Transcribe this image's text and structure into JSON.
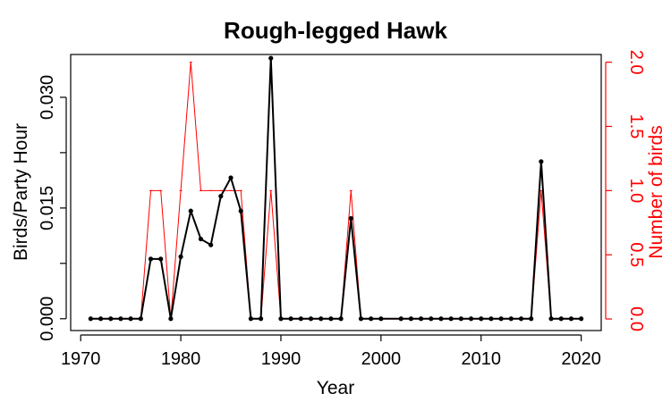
{
  "chart_data": {
    "type": "line",
    "title": "Rough-legged Hawk",
    "xlabel": "Year",
    "ylabel": "Birds/Party Hour",
    "ylabel_right": "Number of birds",
    "xlim": [
      1969,
      2022
    ],
    "ylim": [
      -0.0016,
      0.0358
    ],
    "ylim_right": [
      -0.09,
      2.06
    ],
    "xticks": [
      1970,
      1980,
      1990,
      2000,
      2010,
      2020
    ],
    "xtick_labels": [
      "1970",
      "1980",
      "1990",
      "2000",
      "2010",
      "2020"
    ],
    "yticks": [
      0.0,
      0.015,
      0.03
    ],
    "ytick_labels": [
      "0.000",
      "0.015",
      "0.030"
    ],
    "yticks_right": [
      0.0,
      0.5,
      1.0,
      1.5,
      2.0
    ],
    "ytick_labels_right": [
      "0.0",
      "0.5",
      "1.0",
      "1.5",
      "2.0"
    ],
    "series": [
      {
        "axis": "left",
        "color": "#000000",
        "points": [
          [
            1971,
            0.0
          ],
          [
            1972,
            0.0
          ],
          [
            1973,
            0.0
          ],
          [
            1974,
            0.0
          ],
          [
            1975,
            0.0
          ],
          [
            1976,
            0.0
          ],
          [
            1977,
            0.0081
          ],
          [
            1978,
            0.0081
          ],
          [
            1979,
            0.0
          ],
          [
            1980,
            0.0084
          ],
          [
            1981,
            0.0146
          ],
          [
            1982,
            0.0108
          ],
          [
            1983,
            0.01
          ],
          [
            1984,
            0.0166
          ],
          [
            1985,
            0.0191
          ],
          [
            1986,
            0.0146
          ],
          [
            1987,
            0.0
          ],
          [
            1988,
            0.0
          ],
          [
            1989,
            0.0353
          ],
          [
            1990,
            0.0
          ],
          [
            1991,
            0.0
          ],
          [
            1992,
            0.0
          ],
          [
            1993,
            0.0
          ],
          [
            1994,
            0.0
          ],
          [
            1995,
            0.0
          ],
          [
            1996,
            0.0
          ],
          [
            1997,
            0.0136
          ],
          [
            1998,
            0.0
          ],
          [
            1999,
            0.0
          ],
          [
            2000,
            0.0
          ],
          [
            2002,
            0.0
          ],
          [
            2003,
            0.0
          ],
          [
            2004,
            0.0
          ],
          [
            2005,
            0.0
          ],
          [
            2006,
            0.0
          ],
          [
            2007,
            0.0
          ],
          [
            2008,
            0.0
          ],
          [
            2009,
            0.0
          ],
          [
            2010,
            0.0
          ],
          [
            2011,
            0.0
          ],
          [
            2012,
            0.0
          ],
          [
            2013,
            0.0
          ],
          [
            2014,
            0.0
          ],
          [
            2015,
            0.0
          ],
          [
            2016,
            0.0213
          ],
          [
            2017,
            0.0
          ],
          [
            2018,
            0.0
          ],
          [
            2019,
            0.0
          ],
          [
            2020,
            0.0
          ]
        ]
      },
      {
        "axis": "right",
        "color": "#ff0000",
        "points": [
          [
            1971,
            0
          ],
          [
            1972,
            0
          ],
          [
            1973,
            0
          ],
          [
            1974,
            0
          ],
          [
            1975,
            0
          ],
          [
            1976,
            0
          ],
          [
            1977,
            1
          ],
          [
            1978,
            1
          ],
          [
            1979,
            0
          ],
          [
            1980,
            1
          ],
          [
            1981,
            2
          ],
          [
            1982,
            1
          ],
          [
            1983,
            1
          ],
          [
            1984,
            1
          ],
          [
            1985,
            1
          ],
          [
            1986,
            1
          ],
          [
            1987,
            0
          ],
          [
            1988,
            0
          ],
          [
            1989,
            1
          ],
          [
            1990,
            0
          ],
          [
            1991,
            0
          ],
          [
            1992,
            0
          ],
          [
            1993,
            0
          ],
          [
            1994,
            0
          ],
          [
            1995,
            0
          ],
          [
            1996,
            0
          ],
          [
            1997,
            1
          ],
          [
            1998,
            0
          ],
          [
            1999,
            0
          ],
          [
            2000,
            0
          ],
          [
            2002,
            0
          ],
          [
            2003,
            0
          ],
          [
            2004,
            0
          ],
          [
            2005,
            0
          ],
          [
            2006,
            0
          ],
          [
            2007,
            0
          ],
          [
            2008,
            0
          ],
          [
            2009,
            0
          ],
          [
            2010,
            0
          ],
          [
            2011,
            0
          ],
          [
            2012,
            0
          ],
          [
            2013,
            0
          ],
          [
            2014,
            0
          ],
          [
            2015,
            0
          ],
          [
            2016,
            1
          ],
          [
            2017,
            0
          ],
          [
            2018,
            0
          ],
          [
            2019,
            0
          ],
          [
            2020,
            0
          ]
        ]
      }
    ]
  }
}
